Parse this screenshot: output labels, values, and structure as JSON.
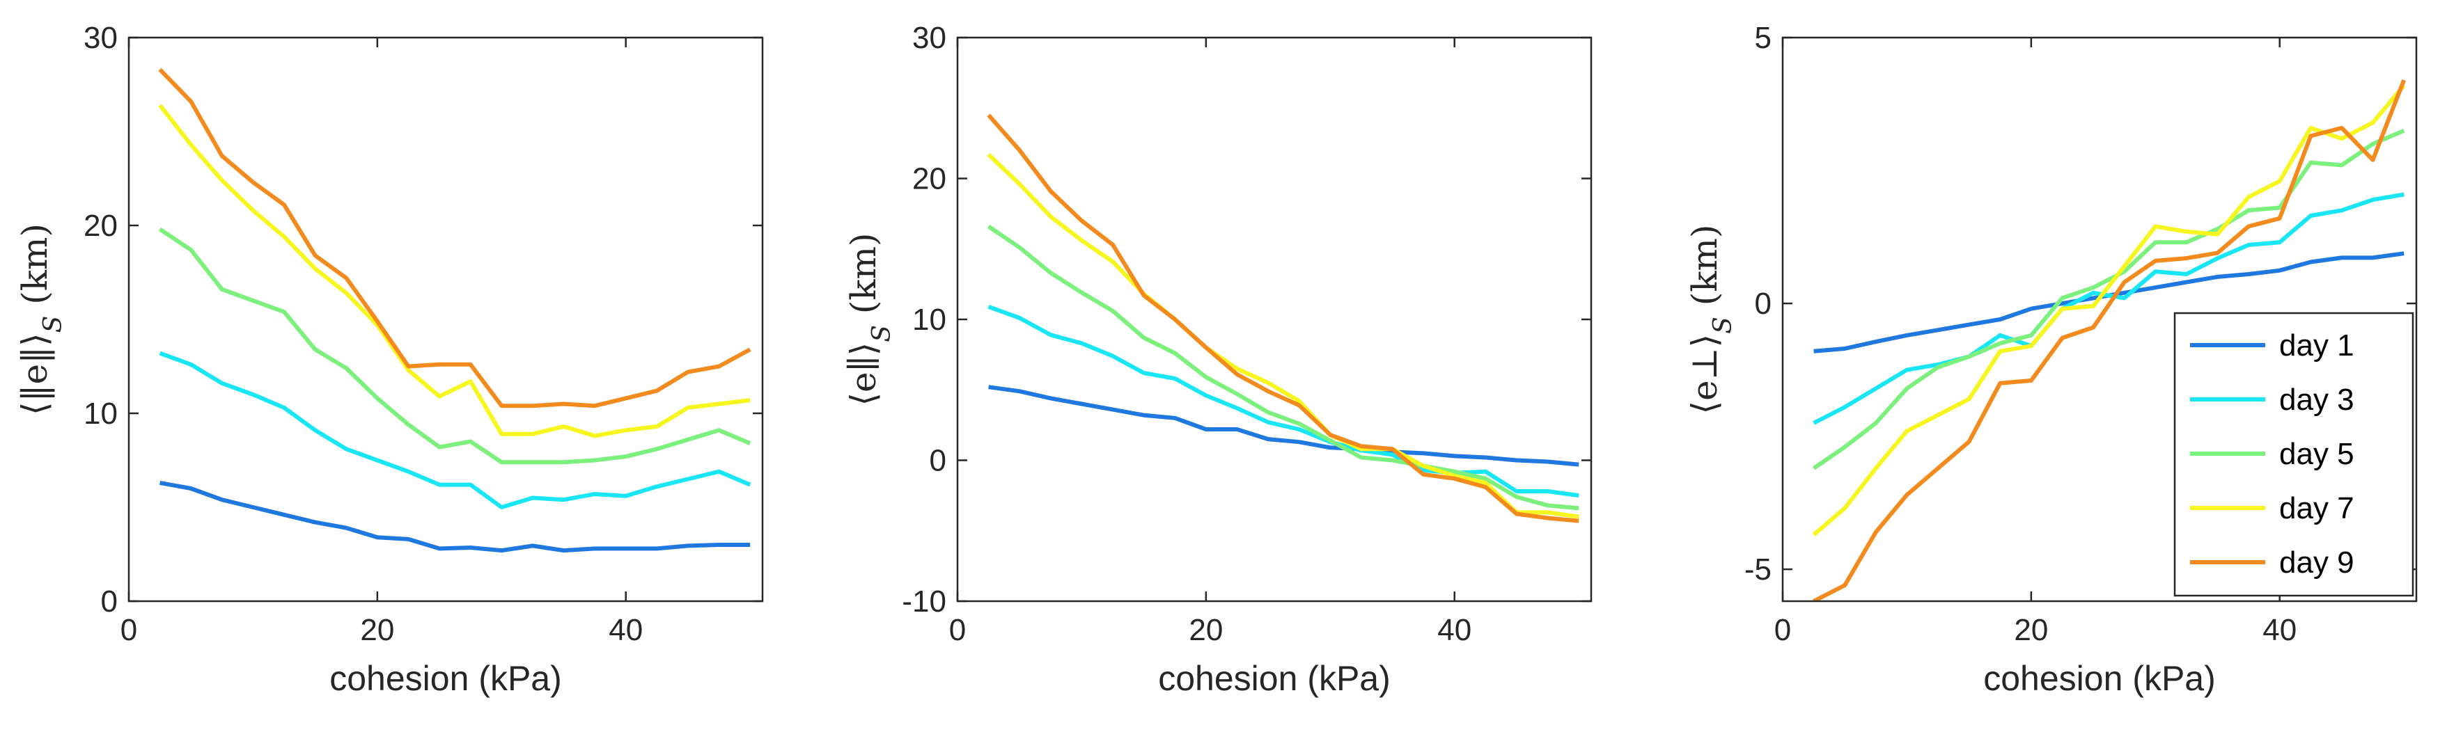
{
  "chart_data": [
    {
      "type": "line",
      "xlabel": "cohesion (kPa)",
      "ylabel": "⟨‖e‖⟩_S (km)",
      "xlim": [
        0,
        51
      ],
      "ylim": [
        0,
        30
      ],
      "xticks": [
        "0",
        "20",
        "40"
      ],
      "yticks": [
        "0",
        "10",
        "20",
        "30"
      ],
      "x": [
        2.5,
        5,
        7.5,
        10,
        12.5,
        15,
        17.5,
        20,
        22.5,
        25,
        27.5,
        30,
        32.5,
        35,
        37.5,
        40,
        42.5,
        45,
        47.5,
        50
      ],
      "series": [
        {
          "name": "day 1",
          "color": "#1f77e0",
          "values": [
            6.3,
            6.0,
            5.4,
            5.0,
            4.6,
            4.2,
            3.9,
            3.4,
            3.3,
            2.8,
            2.85,
            2.7,
            2.95,
            2.7,
            2.8,
            2.8,
            2.8,
            2.95,
            3.0,
            3.0
          ]
        },
        {
          "name": "day 3",
          "color": "#19e6f5",
          "values": [
            13.2,
            12.6,
            11.6,
            11.0,
            10.3,
            9.1,
            8.1,
            7.5,
            6.9,
            6.2,
            6.2,
            5.0,
            5.5,
            5.4,
            5.7,
            5.6,
            6.1,
            6.5,
            6.9,
            6.2
          ]
        },
        {
          "name": "day 5",
          "color": "#7cf07c",
          "values": [
            19.8,
            18.7,
            16.6,
            16.0,
            15.4,
            13.4,
            12.4,
            10.8,
            9.4,
            8.2,
            8.5,
            7.4,
            7.4,
            7.4,
            7.5,
            7.7,
            8.1,
            8.6,
            9.1,
            8.4
          ]
        },
        {
          "name": "day 7",
          "color": "#f7f51e",
          "values": [
            26.4,
            24.3,
            22.4,
            20.8,
            19.4,
            17.7,
            16.4,
            14.7,
            12.3,
            10.9,
            11.7,
            8.9,
            8.9,
            9.3,
            8.8,
            9.1,
            9.3,
            10.3,
            10.5,
            10.7
          ]
        },
        {
          "name": "day 9",
          "color": "#f28a1e",
          "values": [
            28.3,
            26.6,
            23.7,
            22.3,
            21.1,
            18.4,
            17.2,
            14.9,
            12.5,
            12.6,
            12.6,
            10.4,
            10.4,
            10.5,
            10.4,
            10.8,
            11.2,
            12.2,
            12.5,
            13.4
          ]
        }
      ]
    },
    {
      "type": "line",
      "xlabel": "cohesion (kPa)",
      "ylabel": "⟨e∥⟩_S (km)",
      "xlim": [
        0,
        51
      ],
      "ylim": [
        -10,
        30
      ],
      "xticks": [
        "0",
        "20",
        "40"
      ],
      "yticks": [
        "-10",
        "0",
        "10",
        "20",
        "30"
      ],
      "x": [
        2.5,
        5,
        7.5,
        10,
        12.5,
        15,
        17.5,
        20,
        22.5,
        25,
        27.5,
        30,
        32.5,
        35,
        37.5,
        40,
        42.5,
        45,
        47.5,
        50
      ],
      "series": [
        {
          "name": "day 1",
          "color": "#1f77e0",
          "values": [
            5.2,
            4.9,
            4.4,
            4.0,
            3.6,
            3.2,
            3.0,
            2.2,
            2.2,
            1.5,
            1.3,
            0.9,
            0.8,
            0.6,
            0.5,
            0.3,
            0.2,
            0.0,
            -0.1,
            -0.3
          ]
        },
        {
          "name": "day 3",
          "color": "#19e6f5",
          "values": [
            10.9,
            10.1,
            8.9,
            8.3,
            7.4,
            6.2,
            5.8,
            4.6,
            3.7,
            2.7,
            2.2,
            1.3,
            0.7,
            0.4,
            -0.7,
            -0.9,
            -0.8,
            -2.2,
            -2.2,
            -2.5
          ]
        },
        {
          "name": "day 5",
          "color": "#7cf07c",
          "values": [
            16.6,
            15.1,
            13.3,
            11.9,
            10.6,
            8.7,
            7.6,
            5.9,
            4.7,
            3.4,
            2.6,
            1.4,
            0.2,
            0.0,
            -0.4,
            -0.8,
            -1.3,
            -2.6,
            -3.2,
            -3.4
          ]
        },
        {
          "name": "day 7",
          "color": "#f7f51e",
          "values": [
            21.7,
            19.6,
            17.3,
            15.6,
            14.1,
            11.8,
            10.0,
            8.0,
            6.5,
            5.5,
            4.2,
            1.8,
            0.8,
            0.8,
            -0.4,
            -1.1,
            -1.6,
            -3.7,
            -3.7,
            -4.0
          ]
        },
        {
          "name": "day 9",
          "color": "#f28a1e",
          "values": [
            24.5,
            22.0,
            19.1,
            17.0,
            15.3,
            11.7,
            10.0,
            8.0,
            6.1,
            4.9,
            3.9,
            1.8,
            1.0,
            0.8,
            -1.0,
            -1.3,
            -1.9,
            -3.8,
            -4.1,
            -4.3
          ]
        }
      ]
    },
    {
      "type": "line",
      "xlabel": "cohesion (kPa)",
      "ylabel": "⟨e⊥⟩_S (km)",
      "xlim": [
        0,
        51
      ],
      "ylim": [
        -5.6,
        5
      ],
      "xticks": [
        "0",
        "20",
        "40"
      ],
      "yticks": [
        "-5",
        "0",
        "5"
      ],
      "x": [
        2.5,
        5,
        7.5,
        10,
        12.5,
        15,
        17.5,
        20,
        22.5,
        25,
        27.5,
        30,
        32.5,
        35,
        37.5,
        40,
        42.5,
        45,
        47.5,
        50
      ],
      "legend": {
        "position": "bottom-right",
        "entries": [
          "day 1",
          "day 3",
          "day 5",
          "day 7",
          "day 9"
        ]
      },
      "series": [
        {
          "name": "day 1",
          "color": "#1f77e0",
          "values": [
            -0.9,
            -0.85,
            -0.72,
            -0.6,
            -0.5,
            -0.4,
            -0.3,
            -0.1,
            0.0,
            0.1,
            0.2,
            0.3,
            0.4,
            0.5,
            0.55,
            0.62,
            0.78,
            0.86,
            0.86,
            0.94
          ]
        },
        {
          "name": "day 3",
          "color": "#19e6f5",
          "values": [
            -2.25,
            -1.95,
            -1.6,
            -1.25,
            -1.15,
            -1.0,
            -0.6,
            -0.8,
            -0.1,
            0.2,
            0.1,
            0.6,
            0.55,
            0.85,
            1.1,
            1.15,
            1.65,
            1.75,
            1.95,
            2.05
          ]
        },
        {
          "name": "day 5",
          "color": "#7cf07c",
          "values": [
            -3.1,
            -2.7,
            -2.25,
            -1.6,
            -1.2,
            -1.0,
            -0.75,
            -0.6,
            0.1,
            0.3,
            0.6,
            1.15,
            1.15,
            1.4,
            1.75,
            1.8,
            2.65,
            2.6,
            3.0,
            3.25
          ]
        },
        {
          "name": "day 7",
          "color": "#f7f51e",
          "values": [
            -4.35,
            -3.85,
            -3.1,
            -2.4,
            -2.1,
            -1.8,
            -0.9,
            -0.8,
            -0.1,
            -0.05,
            0.7,
            1.45,
            1.35,
            1.3,
            2.0,
            2.3,
            3.3,
            3.1,
            3.4,
            4.1
          ]
        },
        {
          "name": "day 9",
          "color": "#f28a1e",
          "values": [
            -5.6,
            -5.3,
            -4.3,
            -3.6,
            -3.1,
            -2.6,
            -1.5,
            -1.45,
            -0.65,
            -0.45,
            0.4,
            0.8,
            0.85,
            0.95,
            1.45,
            1.6,
            3.15,
            3.3,
            2.7,
            4.2
          ]
        }
      ]
    }
  ]
}
